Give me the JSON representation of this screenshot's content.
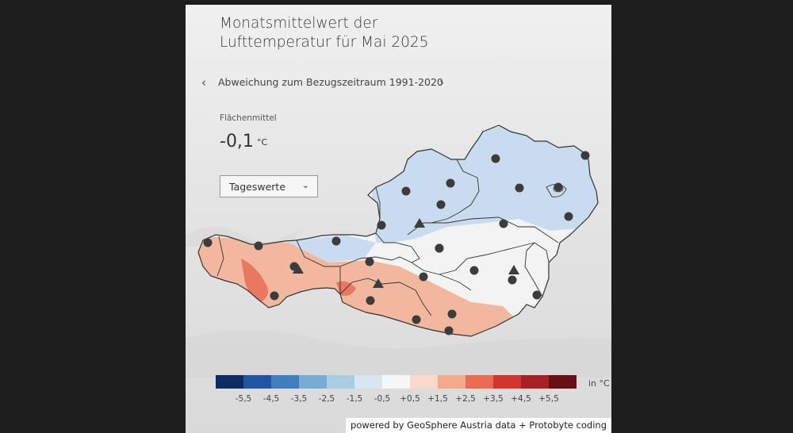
{
  "title_line1": "Monatsmittelwert der",
  "title_line2": "Lufttemperatur für Mai 2025",
  "nav": {
    "prev_icon": "chevron-left-icon",
    "prev_glyph": "‹",
    "label": "Abweichung zum Bezugszeitraum 1991-2020",
    "next_icon": "chevron-right-icon",
    "next_glyph": "›"
  },
  "area_mean": {
    "label": "Flächenmittel",
    "value": "-0,1",
    "unit": "°C"
  },
  "dropdown": {
    "selected": "Tageswerte",
    "icon": "chevron-down-icon",
    "glyph": "⌄"
  },
  "legend": {
    "unit": "in °C",
    "colors": [
      "#0c2c63",
      "#1f55a1",
      "#3f7fbf",
      "#76acd6",
      "#aacde4",
      "#d8e6f2",
      "#f7f7f7",
      "#fbd9c8",
      "#f4a98a",
      "#ea6d53",
      "#d2352f",
      "#a82023",
      "#6b0f16"
    ],
    "labels": [
      "-5,5",
      "-4,5",
      "-3,5",
      "-2,5",
      "-1,5",
      "-0,5",
      "+0,5",
      "+1,5",
      "+2,5",
      "+3,5",
      "+4,5",
      "+5,5"
    ]
  },
  "colors": {
    "warm": "#f2b89e",
    "warm_strong": "#e8785f",
    "cool": "#c9dcef",
    "neutral": "#f3f3f3",
    "outline": "#333333",
    "marker": "#3c3c3c"
  },
  "stations": [
    {
      "id": "station-01",
      "shape": "circle"
    },
    {
      "id": "station-02",
      "shape": "circle"
    },
    {
      "id": "station-03",
      "shape": "circle"
    },
    {
      "id": "station-04",
      "shape": "circle"
    },
    {
      "id": "station-05",
      "shape": "circle"
    },
    {
      "id": "station-06",
      "shape": "circle"
    },
    {
      "id": "station-07",
      "shape": "circle"
    },
    {
      "id": "station-08",
      "shape": "circle"
    },
    {
      "id": "station-09",
      "shape": "circle"
    },
    {
      "id": "station-10",
      "shape": "circle"
    },
    {
      "id": "station-11",
      "shape": "circle"
    },
    {
      "id": "station-12",
      "shape": "circle"
    },
    {
      "id": "station-13",
      "shape": "triangle"
    },
    {
      "id": "station-14",
      "shape": "circle"
    },
    {
      "id": "station-15",
      "shape": "circle"
    },
    {
      "id": "station-16",
      "shape": "circle"
    },
    {
      "id": "station-17",
      "shape": "triangle"
    },
    {
      "id": "station-18",
      "shape": "circle"
    },
    {
      "id": "station-19",
      "shape": "circle"
    },
    {
      "id": "station-20",
      "shape": "circle"
    },
    {
      "id": "station-21",
      "shape": "circle"
    },
    {
      "id": "station-22",
      "shape": "triangle"
    },
    {
      "id": "station-23",
      "shape": "circle"
    },
    {
      "id": "station-24",
      "shape": "circle"
    },
    {
      "id": "station-25",
      "shape": "circle"
    },
    {
      "id": "station-26",
      "shape": "triangle"
    },
    {
      "id": "station-27",
      "shape": "circle"
    },
    {
      "id": "station-28",
      "shape": "circle"
    },
    {
      "id": "station-29",
      "shape": "circle"
    },
    {
      "id": "station-30",
      "shape": "circle"
    }
  ],
  "credit": "powered by GeoSphere Austria data + Protobyte coding"
}
